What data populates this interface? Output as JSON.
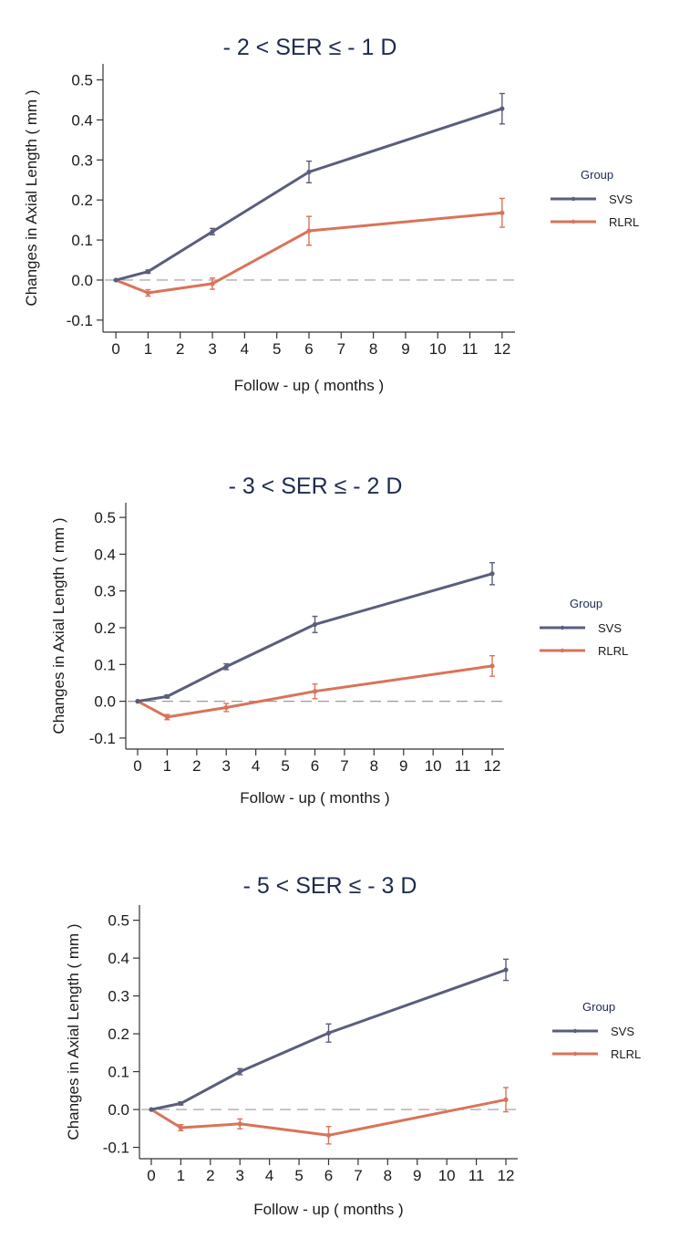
{
  "colors": {
    "SVS": "#5a5e7c",
    "RLRL": "#d9735a",
    "axis": "#333333",
    "reference_line": "#9a9a9a",
    "title": "#1d2b4f"
  },
  "chart_data": [
    {
      "type": "line",
      "title": "- 2 < SER ≤ - 1 D",
      "xlabel": "Follow - up ( months )",
      "ylabel": "Changes in Axial Length ( mm )",
      "x_ticks": [
        0,
        1,
        2,
        3,
        4,
        5,
        6,
        7,
        8,
        9,
        10,
        11,
        12
      ],
      "y_ticks": [
        -0.1,
        0.0,
        0.1,
        0.2,
        0.3,
        0.4,
        0.5
      ],
      "y_tick_labels": [
        "-0.1",
        "0.0",
        "0.1",
        "0.2",
        "0.3",
        "0.4",
        "0.5"
      ],
      "xlim": [
        -0.4,
        12.4
      ],
      "ylim": [
        -0.13,
        0.54
      ],
      "reference_line": 0.0,
      "legend_title": "Group",
      "legend_position": "right",
      "series": [
        {
          "name": "SVS",
          "x": [
            0,
            1,
            3,
            6,
            12
          ],
          "y": [
            0.0,
            0.021,
            0.121,
            0.27,
            0.428
          ],
          "error": [
            0,
            0.004,
            0.008,
            0.027,
            0.038
          ]
        },
        {
          "name": "RLRL",
          "x": [
            0,
            1,
            3,
            6,
            12
          ],
          "y": [
            0.0,
            -0.032,
            -0.009,
            0.123,
            0.168
          ],
          "error": [
            0,
            0.008,
            0.014,
            0.036,
            0.036
          ]
        }
      ]
    },
    {
      "type": "line",
      "title": "- 3 < SER ≤ - 2 D",
      "xlabel": "Follow - up ( months )",
      "ylabel": "Changes in Axial Length ( mm )",
      "x_ticks": [
        0,
        1,
        2,
        3,
        4,
        5,
        6,
        7,
        8,
        9,
        10,
        11,
        12
      ],
      "y_ticks": [
        -0.1,
        0.0,
        0.1,
        0.2,
        0.3,
        0.4,
        0.5
      ],
      "y_tick_labels": [
        "-0.1",
        "0.0",
        "0.1",
        "0.2",
        "0.3",
        "0.4",
        "0.5"
      ],
      "xlim": [
        -0.4,
        12.4
      ],
      "ylim": [
        -0.13,
        0.54
      ],
      "reference_line": 0.0,
      "legend_title": "Group",
      "legend_position": "right",
      "series": [
        {
          "name": "SVS",
          "x": [
            0,
            1,
            3,
            6,
            12
          ],
          "y": [
            0.0,
            0.013,
            0.094,
            0.209,
            0.347
          ],
          "error": [
            0,
            0.004,
            0.008,
            0.022,
            0.03
          ]
        },
        {
          "name": "RLRL",
          "x": [
            0,
            1,
            3,
            6,
            12
          ],
          "y": [
            0.0,
            -0.043,
            -0.017,
            0.027,
            0.096
          ],
          "error": [
            0,
            0.007,
            0.011,
            0.02,
            0.028
          ]
        }
      ]
    },
    {
      "type": "line",
      "title": "- 5 < SER ≤ - 3 D",
      "xlabel": "Follow - up ( months )",
      "ylabel": "Changes in Axial Length ( mm )",
      "x_ticks": [
        0,
        1,
        2,
        3,
        4,
        5,
        6,
        7,
        8,
        9,
        10,
        11,
        12
      ],
      "y_ticks": [
        -0.1,
        0.0,
        0.1,
        0.2,
        0.3,
        0.4,
        0.5
      ],
      "y_tick_labels": [
        "-0.1",
        "0.0",
        "0.1",
        "0.2",
        "0.3",
        "0.4",
        "0.5"
      ],
      "xlim": [
        -0.4,
        12.4
      ],
      "ylim": [
        -0.13,
        0.54
      ],
      "reference_line": 0.0,
      "legend_title": "Group",
      "legend_position": "right",
      "series": [
        {
          "name": "SVS",
          "x": [
            0,
            1,
            3,
            6,
            12
          ],
          "y": [
            0.0,
            0.016,
            0.1,
            0.202,
            0.369
          ],
          "error": [
            0,
            0.004,
            0.008,
            0.024,
            0.028
          ]
        },
        {
          "name": "RLRL",
          "x": [
            0,
            1,
            3,
            6,
            12
          ],
          "y": [
            0.0,
            -0.048,
            -0.038,
            -0.068,
            0.026
          ],
          "error": [
            0,
            0.008,
            0.013,
            0.023,
            0.032
          ]
        }
      ]
    }
  ]
}
